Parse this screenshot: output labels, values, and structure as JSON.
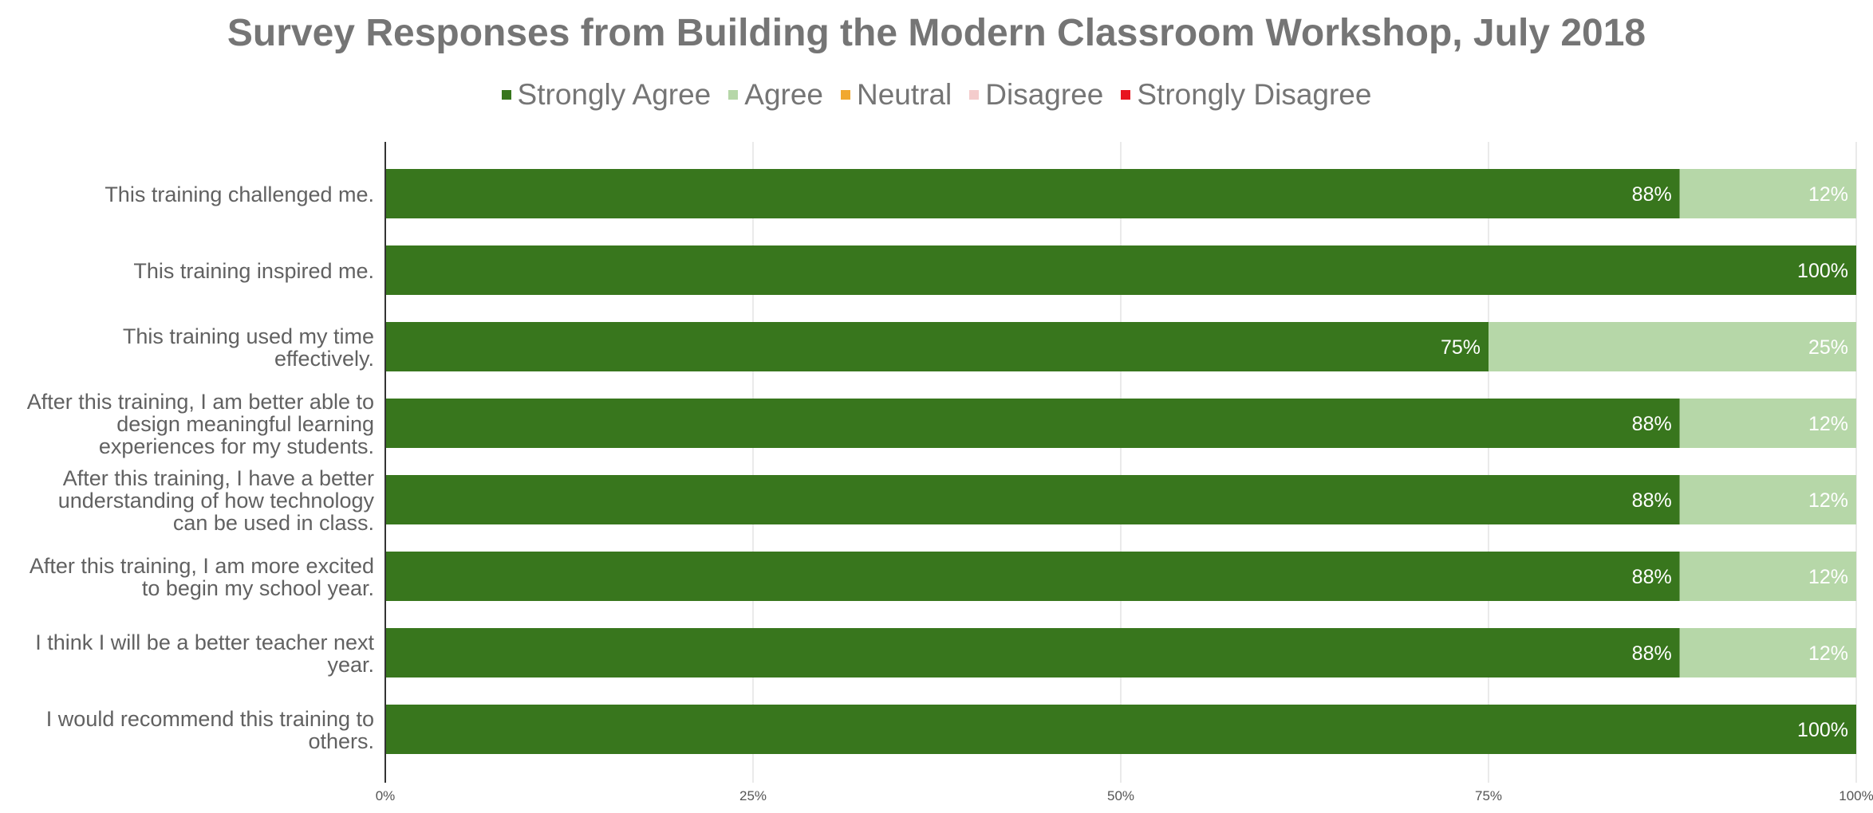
{
  "chart_data": {
    "type": "bar",
    "orientation": "horizontal",
    "stacked": true,
    "percent": true,
    "title": "Survey Responses from Building the Modern Classroom Workshop, July 2018",
    "legend_position": "top",
    "grid": true,
    "xlim": [
      0,
      100
    ],
    "x_ticks": [
      "0%",
      "25%",
      "50%",
      "75%",
      "100%"
    ],
    "categories": [
      [
        "This training challenged me."
      ],
      [
        "This training inspired me."
      ],
      [
        "This training used my time",
        "effectively."
      ],
      [
        "After this training, I am better able to",
        "design meaningful learning",
        "experiences for my students."
      ],
      [
        "After this training, I have a better",
        "understanding of how technology",
        "can be used in class."
      ],
      [
        "After this training, I am more excited",
        "to begin my school year."
      ],
      [
        "I think I will be a better teacher next",
        "year."
      ],
      [
        "I would recommend this training to",
        "others."
      ]
    ],
    "series": [
      {
        "name": "Strongly Agree",
        "color": "#38761d",
        "values": [
          88,
          100,
          75,
          88,
          88,
          88,
          88,
          100
        ],
        "labels": [
          "88%",
          "100%",
          "75%",
          "88%",
          "88%",
          "88%",
          "88%",
          "100%"
        ]
      },
      {
        "name": "Agree",
        "color": "#b6d7a8",
        "values": [
          12,
          0,
          25,
          12,
          12,
          12,
          12,
          0
        ],
        "labels": [
          "12%",
          "",
          "25%",
          "12%",
          "12%",
          "12%",
          "12%",
          ""
        ]
      },
      {
        "name": "Neutral",
        "color": "#f1a82f",
        "values": [
          0,
          0,
          0,
          0,
          0,
          0,
          0,
          0
        ],
        "labels": [
          "",
          "",
          "",
          "",
          "",
          "",
          "",
          ""
        ]
      },
      {
        "name": "Disagree",
        "color": "#f4cccc",
        "values": [
          0,
          0,
          0,
          0,
          0,
          0,
          0,
          0
        ],
        "labels": [
          "",
          "",
          "",
          "",
          "",
          "",
          "",
          ""
        ]
      },
      {
        "name": "Strongly Disagree",
        "color": "#e8141f",
        "values": [
          0,
          0,
          0,
          0,
          0,
          0,
          0,
          0
        ],
        "labels": [
          "",
          "",
          "",
          "",
          "",
          "",
          "",
          ""
        ]
      }
    ]
  }
}
